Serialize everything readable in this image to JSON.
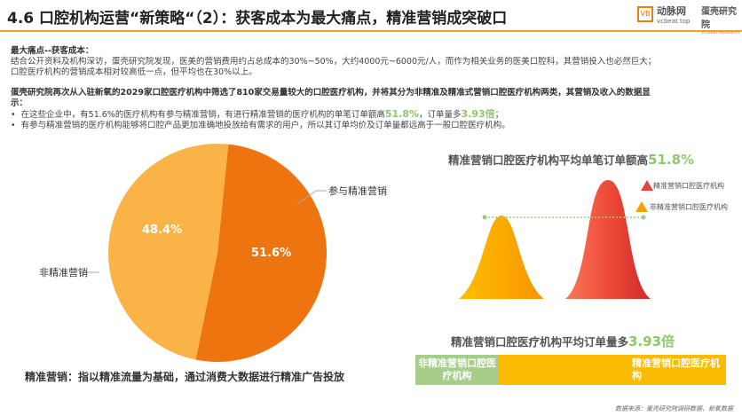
{
  "title": "4.6 口腔机构运营“新策略“（2）：获客成本为最大痛点，精准营销成突破口",
  "logos": {
    "vcbeat": "动脉网",
    "vcbeat_url": "vcbeat.top",
    "vbr": "蛋壳研究院",
    "vbr_sub": "VCBeat Research"
  },
  "intro": {
    "heading": "最大痛点--获客成本：",
    "line1": "结合公开资料及机构深访，蛋壳研究院发现，医美的营销费用约占总成本的30%~50%，大约4000元~6000元/人，而作为相关业务的医美口腔科，其营销投入也必然巨大；",
    "line2": "口腔医疗机构的营销成本相对较高低一点，但平均也在30%以上。",
    "para2a": "蛋壳研究院再次从入驻新氧的2029家口腔医疗机构中筛选了810家交易量较大的口腔医疗机构，并将其分为非精准及精准式营销口腔医疗机构两类，其营销及收入的数据显",
    "para2b": "示：",
    "bullet1_pre": "在这些企业中，有51.6%的医疗机构有参与精准营销，有进行精准营销的医疗机构的单笔订单额高",
    "bullet1_v1": "51.8%",
    "bullet1_mid": "，订单量多",
    "bullet1_v2": "3.93倍",
    "bullet1_post": "；",
    "bullet2": "有参与精准营销的医疗机构能够将口腔产品更加准确地投放给有需求的用户，所以其订单均价及订单量都远高于一般口腔医疗机构。"
  },
  "pie": {
    "slices": [
      {
        "label": "参与精准营销",
        "value": 51.6,
        "text": "51.6%",
        "color": "#EE7410"
      },
      {
        "label": "非精准营销",
        "value": 48.4,
        "text": "48.4%",
        "color": "#F9B347"
      }
    ]
  },
  "pie_note": "精准营销：指以精准流量为基础，通过消费大数据进行精准广告投放",
  "chart1": {
    "title_pre": "精准营销口腔医疗机构平均单笔订单额高",
    "title_val": "51.8%",
    "legend": [
      {
        "label": "精准营销口腔医疗机构",
        "color": "#e8443a"
      },
      {
        "label": "非精准营销口腔医疗机构",
        "color": "#f9a000"
      }
    ]
  },
  "chart2": {
    "title_pre": "精准营销口腔医疗机构平均订单量多",
    "title_val": "3.93倍",
    "bars": [
      {
        "label": "非精准营销口腔医疗机构",
        "value": 1,
        "color": "#a6ce8a"
      },
      {
        "label": "精准营销口腔医疗机构",
        "value": 3.93,
        "color": "#fbbb00"
      }
    ]
  },
  "source": "数据来源：蛋壳研究院调研数据、新氧数据"
}
